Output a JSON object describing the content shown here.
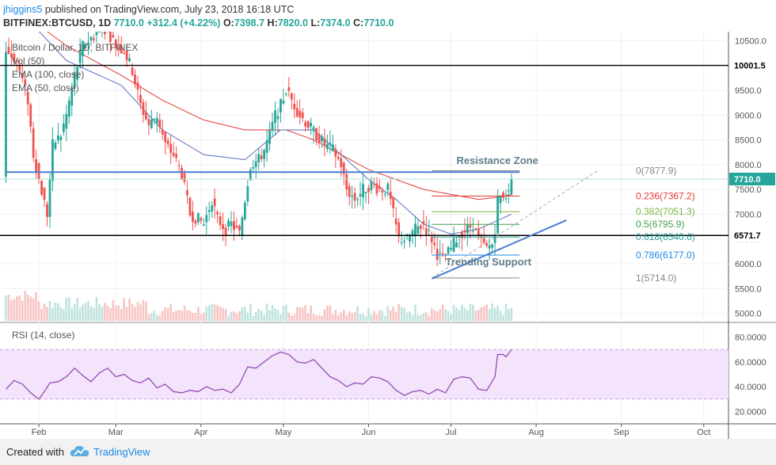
{
  "header": {
    "user": "jhiggins5",
    "published": "published on TradingView.com, July 23, 2018 16:18 UTC",
    "symbol": "BITFINEX:BTCUSD, 1D",
    "price": "7710.0",
    "change": "+312.4 (+4.22%)",
    "o_label": "O:",
    "o": "7398.7",
    "h_label": "H:",
    "h": "7820.0",
    "l_label": "L:",
    "l": "7374.0",
    "c_label": "C:",
    "c": "7710.0"
  },
  "chart_data": {
    "type": "candlestick",
    "legend": [
      "Bitcoin / Dollar, 1D, BITFINEX",
      "Vol (50)",
      "EMA (100, close)",
      "EMA (50, close)"
    ],
    "price_axis": {
      "ylim": [
        4850,
        10650
      ],
      "ticks": [
        10500,
        10000,
        9500,
        9000,
        8500,
        8000,
        7500,
        7000,
        6500,
        6000,
        5500,
        5000
      ],
      "labels": [
        "10500.0",
        "10000.0",
        "9500.0",
        "9000.0",
        "8500.0",
        "8000.0",
        "7500.0",
        "7000.0",
        "6500.0",
        "6000.0",
        "5500.0",
        "5000.0"
      ]
    },
    "x_labels": [
      {
        "label": "Feb",
        "day": 0
      },
      {
        "label": "Mar",
        "day": 28
      },
      {
        "label": "Apr",
        "day": 59
      },
      {
        "label": "May",
        "day": 89
      },
      {
        "label": "Jun",
        "day": 120
      },
      {
        "label": "Jul",
        "day": 150
      },
      {
        "label": "Aug",
        "day": 181
      },
      {
        "label": "Sep",
        "day": 212
      },
      {
        "label": "Oct",
        "day": 242
      }
    ],
    "x_range_days": [
      -13,
      251
    ],
    "last_day": 172,
    "price_path": [
      [
        -12,
        10300
      ],
      [
        -8,
        10100
      ],
      [
        -4,
        9300
      ],
      [
        -2,
        8200
      ],
      [
        0,
        7700
      ],
      [
        3,
        7000
      ],
      [
        5,
        8400
      ],
      [
        8,
        8600
      ],
      [
        10,
        9000
      ],
      [
        13,
        9800
      ],
      [
        16,
        10400
      ],
      [
        20,
        10600
      ],
      [
        23,
        10800
      ],
      [
        26,
        10600
      ],
      [
        28,
        10400
      ],
      [
        31,
        10300
      ],
      [
        34,
        9900
      ],
      [
        37,
        9200
      ],
      [
        40,
        8800
      ],
      [
        43,
        9000
      ],
      [
        46,
        8400
      ],
      [
        49,
        8200
      ],
      [
        52,
        7800
      ],
      [
        55,
        7000
      ],
      [
        58,
        6900
      ],
      [
        60,
        6800
      ],
      [
        63,
        7300
      ],
      [
        65,
        6900
      ],
      [
        68,
        6700
      ],
      [
        70,
        6800
      ],
      [
        73,
        6600
      ],
      [
        75,
        7300
      ],
      [
        77,
        8000
      ],
      [
        80,
        8100
      ],
      [
        82,
        8300
      ],
      [
        84,
        8600
      ],
      [
        86,
        9000
      ],
      [
        88,
        9200
      ],
      [
        90,
        9500
      ],
      [
        92,
        9300
      ],
      [
        95,
        9000
      ],
      [
        98,
        8800
      ],
      [
        101,
        8600
      ],
      [
        104,
        8400
      ],
      [
        107,
        8300
      ],
      [
        110,
        8000
      ],
      [
        112,
        7500
      ],
      [
        115,
        7300
      ],
      [
        118,
        7500
      ],
      [
        121,
        7600
      ],
      [
        124,
        7500
      ],
      [
        127,
        7500
      ],
      [
        129,
        7000
      ],
      [
        131,
        6500
      ],
      [
        134,
        6500
      ],
      [
        137,
        6700
      ],
      [
        140,
        6800
      ],
      [
        143,
        6500
      ],
      [
        145,
        6200
      ],
      [
        147,
        6100
      ],
      [
        150,
        6300
      ],
      [
        153,
        6600
      ],
      [
        156,
        6700
      ],
      [
        158,
        6800
      ],
      [
        160,
        6500
      ],
      [
        163,
        6300
      ],
      [
        165,
        6400
      ],
      [
        166,
        6700
      ],
      [
        167,
        7300
      ],
      [
        169,
        7400
      ],
      [
        170,
        7400
      ],
      [
        171,
        7400
      ],
      [
        172,
        7710
      ]
    ],
    "last_candle": {
      "open": 7398.7,
      "high": 7820.0,
      "low": 7374.0,
      "close": 7710.0
    },
    "horizontal_lines": [
      {
        "price": 10001.5,
        "label": "10001.5",
        "color": "#000000"
      },
      {
        "price": 6571.7,
        "label": "6571.7",
        "color": "#000000"
      }
    ],
    "current_price": {
      "price": 7710.0,
      "label": "7710.0",
      "color": "#26a69a"
    },
    "resistance": {
      "price": 7850,
      "from_day": -12,
      "to_day": 175,
      "color": "#4a7fd0",
      "label": "Resistance Zone"
    },
    "trendline": {
      "from": [
        143,
        5700
      ],
      "to": [
        192,
        6880
      ],
      "color": "#4a7fd0",
      "label": "Trending Support"
    },
    "fib_dashed": {
      "from": [
        143,
        5714
      ],
      "to": [
        204,
        7900
      ],
      "color": "#aaaaaa"
    },
    "fib_levels": [
      {
        "label": "0(7877.9)",
        "price": 7877.9,
        "color": "#888888"
      },
      {
        "label": "0.236(7367.2)",
        "price": 7367.2,
        "color": "#e53935"
      },
      {
        "label": "0.382(7051.3)",
        "price": 7051.3,
        "color": "#7cb342"
      },
      {
        "label": "0.5(6795.9)",
        "price": 6795.9,
        "color": "#43a047"
      },
      {
        "label": "0.618(6540.6)",
        "price": 6540.6,
        "color": "#26a69a"
      },
      {
        "label": "0.786(6177.0)",
        "price": 6177.0,
        "color": "#1e88e5"
      },
      {
        "label": "1(5714.0)",
        "price": 5714.0,
        "color": "#888888"
      }
    ],
    "fib_from_day": 143,
    "fib_to_day": 175,
    "ema100": [
      [
        -12,
        11300
      ],
      [
        10,
        10400
      ],
      [
        20,
        10100
      ],
      [
        30,
        9800
      ],
      [
        45,
        9300
      ],
      [
        60,
        8900
      ],
      [
        75,
        8700
      ],
      [
        90,
        8700
      ],
      [
        100,
        8500
      ],
      [
        110,
        8200
      ],
      [
        120,
        7900
      ],
      [
        130,
        7700
      ],
      [
        140,
        7500
      ],
      [
        150,
        7400
      ],
      [
        160,
        7300
      ],
      [
        168,
        7350
      ],
      [
        172,
        7400
      ]
    ],
    "ema50": [
      [
        -12,
        11400
      ],
      [
        10,
        10100
      ],
      [
        30,
        9600
      ],
      [
        45,
        8700
      ],
      [
        60,
        8200
      ],
      [
        75,
        8100
      ],
      [
        88,
        8700
      ],
      [
        100,
        8700
      ],
      [
        110,
        8200
      ],
      [
        120,
        7700
      ],
      [
        130,
        7300
      ],
      [
        140,
        6800
      ],
      [
        150,
        6600
      ],
      [
        160,
        6700
      ],
      [
        166,
        6850
      ],
      [
        172,
        7000
      ]
    ],
    "colors": {
      "up": "#26a69a",
      "down": "#ef5350",
      "ema100": "#e53935",
      "ema50": "#5c6bc0"
    },
    "rsi": {
      "label": "RSI (14, close)",
      "ylim": [
        10,
        90
      ],
      "ticks": [
        80,
        60,
        40,
        20
      ],
      "tick_labels": [
        "80.0000",
        "60.0000",
        "40.0000",
        "20.0000"
      ],
      "band": [
        30,
        70
      ],
      "color": "#8e44ad",
      "band_color": "#f3e3fb",
      "values": [
        [
          -12,
          38
        ],
        [
          -9,
          45
        ],
        [
          -6,
          42
        ],
        [
          -3,
          35
        ],
        [
          0,
          30
        ],
        [
          2,
          36
        ],
        [
          4,
          43
        ],
        [
          7,
          44
        ],
        [
          10,
          48
        ],
        [
          13,
          55
        ],
        [
          16,
          49
        ],
        [
          19,
          44
        ],
        [
          22,
          51
        ],
        [
          25,
          55
        ],
        [
          28,
          48
        ],
        [
          31,
          50
        ],
        [
          34,
          45
        ],
        [
          37,
          43
        ],
        [
          40,
          47
        ],
        [
          43,
          39
        ],
        [
          46,
          42
        ],
        [
          49,
          36
        ],
        [
          52,
          35
        ],
        [
          55,
          37
        ],
        [
          58,
          36
        ],
        [
          61,
          40
        ],
        [
          64,
          37
        ],
        [
          67,
          38
        ],
        [
          70,
          35
        ],
        [
          73,
          42
        ],
        [
          76,
          56
        ],
        [
          79,
          55
        ],
        [
          82,
          60
        ],
        [
          85,
          65
        ],
        [
          88,
          68
        ],
        [
          91,
          66
        ],
        [
          94,
          60
        ],
        [
          97,
          59
        ],
        [
          100,
          62
        ],
        [
          103,
          55
        ],
        [
          106,
          48
        ],
        [
          109,
          45
        ],
        [
          112,
          40
        ],
        [
          115,
          43
        ],
        [
          118,
          42
        ],
        [
          121,
          48
        ],
        [
          124,
          47
        ],
        [
          127,
          44
        ],
        [
          130,
          37
        ],
        [
          133,
          33
        ],
        [
          136,
          36
        ],
        [
          139,
          37
        ],
        [
          142,
          34
        ],
        [
          145,
          38
        ],
        [
          148,
          35
        ],
        [
          151,
          46
        ],
        [
          154,
          48
        ],
        [
          157,
          47
        ],
        [
          160,
          38
        ],
        [
          163,
          37
        ],
        [
          166,
          48
        ],
        [
          167,
          66
        ],
        [
          169,
          66
        ],
        [
          170,
          64
        ],
        [
          172,
          70
        ]
      ]
    }
  },
  "footer": {
    "created": "Created with",
    "brand": "TradingView"
  }
}
